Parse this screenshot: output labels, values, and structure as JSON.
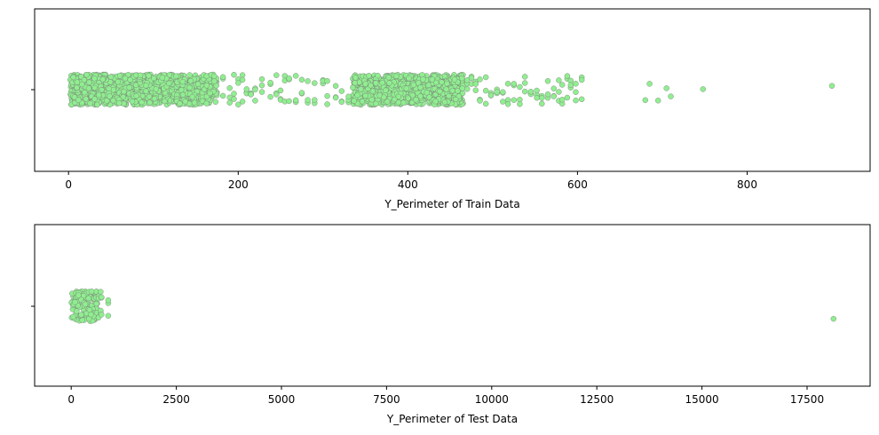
{
  "chart_data": [
    {
      "type": "scatter",
      "style": "strip",
      "title": "",
      "xlabel": "Y_Perimeter of Train Data",
      "ylabel": "",
      "xlim": [
        -40,
        945
      ],
      "xticks": [
        0,
        200,
        400,
        600,
        800
      ],
      "tick_labels": [
        "0",
        "200",
        "400",
        "600",
        "800"
      ],
      "grid": false,
      "legend": "none",
      "dense_bands": [
        [
          2,
          175
        ],
        [
          335,
          465
        ]
      ],
      "x": [
        182,
        190,
        195,
        200,
        205,
        210,
        215,
        220,
        228,
        238,
        245,
        250,
        255,
        260,
        268,
        275,
        282,
        290,
        300,
        305,
        315,
        322,
        330,
        350,
        470,
        475,
        480,
        485,
        492,
        498,
        505,
        512,
        518,
        525,
        532,
        538,
        545,
        552,
        558,
        565,
        572,
        578,
        582,
        588,
        592,
        598,
        605,
        680,
        685,
        695,
        705,
        710,
        748,
        900
      ],
      "marker_color": "#90EE90",
      "edge_color": "#777777"
    },
    {
      "type": "scatter",
      "style": "strip",
      "title": "",
      "xlabel": "Y_Perimeter of Test Data",
      "ylabel": "",
      "xlim": [
        -870,
        19000
      ],
      "xticks": [
        0,
        2500,
        5000,
        7500,
        10000,
        12500,
        15000,
        17500
      ],
      "tick_labels": [
        "0",
        "2500",
        "5000",
        "7500",
        "10000",
        "12500",
        "15000",
        "17500"
      ],
      "grid": false,
      "legend": "none",
      "dense_bands": [
        [
          5,
          620
        ]
      ],
      "x": [
        650,
        700,
        720,
        880,
        18130
      ],
      "marker_color": "#90EE90",
      "edge_color": "#777777"
    }
  ]
}
